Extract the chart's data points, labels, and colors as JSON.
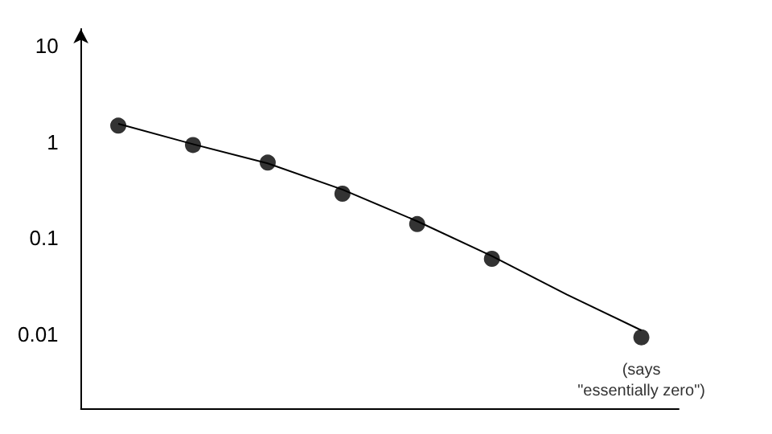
{
  "chart_data": {
    "type": "scatter",
    "categories": [
      null,
      null,
      null,
      null,
      null,
      null,
      null,
      null
    ],
    "series": [
      {
        "color": "#000000",
        "marker": "circle",
        "values": [
          1.48,
          0.93,
          0.61,
          0.29,
          0.14,
          0.061,
          null,
          0.0093
        ]
      },
      {
        "type": "line",
        "color": "#000000",
        "marker": "none",
        "line_style": "solid",
        "values": [
          1.55,
          0.95,
          0.6,
          0.32,
          0.15,
          0.065,
          0.026,
          0.011
        ]
      }
    ],
    "log": "y",
    "ylim": [
      0.0017,
      15
    ],
    "yticks": [
      0.01,
      0.1,
      1,
      10
    ],
    "grid": false,
    "annotations": [
      "(says\n\"essentially zero\")"
    ]
  }
}
